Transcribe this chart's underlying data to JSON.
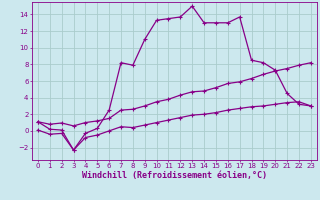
{
  "xlabel": "Windchill (Refroidissement éolien,°C)",
  "xlim": [
    -0.5,
    23.5
  ],
  "ylim": [
    -3.5,
    15.5
  ],
  "yticks": [
    -2,
    0,
    2,
    4,
    6,
    8,
    10,
    12,
    14
  ],
  "xticks": [
    0,
    1,
    2,
    3,
    4,
    5,
    6,
    7,
    8,
    9,
    10,
    11,
    12,
    13,
    14,
    15,
    16,
    17,
    18,
    19,
    20,
    21,
    22,
    23
  ],
  "bg_color": "#cce8ee",
  "grid_color": "#aacccc",
  "line_color": "#880088",
  "line1_x": [
    0,
    1,
    2,
    3,
    4,
    5,
    6,
    7,
    8,
    9,
    10,
    11,
    12,
    13,
    14,
    15,
    16,
    17,
    18,
    19,
    20,
    21,
    22,
    23
  ],
  "line1_y": [
    1.1,
    0.2,
    0.1,
    -2.3,
    -0.3,
    0.3,
    2.5,
    8.2,
    7.9,
    11.0,
    13.3,
    13.5,
    13.7,
    15.0,
    13.0,
    13.0,
    13.0,
    13.7,
    8.5,
    8.2,
    7.3,
    4.5,
    3.2,
    3.0
  ],
  "line2_x": [
    0,
    1,
    2,
    3,
    4,
    5,
    6,
    7,
    8,
    9,
    10,
    11,
    12,
    13,
    14,
    15,
    16,
    17,
    18,
    19,
    20,
    21,
    22,
    23
  ],
  "line2_y": [
    1.1,
    0.8,
    0.95,
    0.6,
    1.0,
    1.2,
    1.5,
    2.5,
    2.6,
    3.0,
    3.5,
    3.8,
    4.3,
    4.7,
    4.8,
    5.2,
    5.7,
    5.9,
    6.3,
    6.8,
    7.2,
    7.5,
    7.9,
    8.2
  ],
  "line3_x": [
    0,
    1,
    2,
    3,
    4,
    5,
    6,
    7,
    8,
    9,
    10,
    11,
    12,
    13,
    14,
    15,
    16,
    17,
    18,
    19,
    20,
    21,
    22,
    23
  ],
  "line3_y": [
    0.1,
    -0.4,
    -0.3,
    -2.3,
    -0.8,
    -0.5,
    0.0,
    0.5,
    0.4,
    0.7,
    1.0,
    1.3,
    1.6,
    1.9,
    2.0,
    2.2,
    2.5,
    2.7,
    2.9,
    3.0,
    3.2,
    3.4,
    3.5,
    3.0
  ],
  "marker": "+",
  "markersize": 3.5,
  "linewidth": 0.9,
  "xlabel_fontsize": 6.0,
  "tick_fontsize": 5.0
}
